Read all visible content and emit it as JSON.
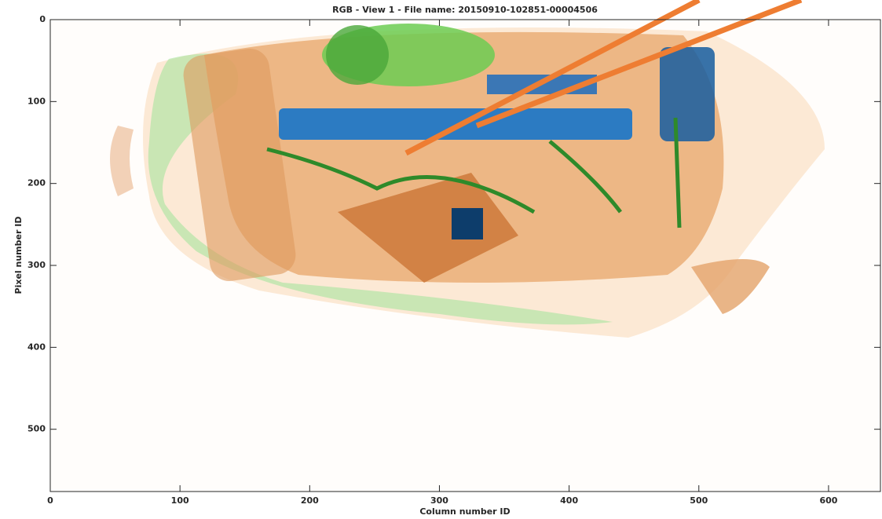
{
  "chart_data": {
    "type": "image",
    "title": "RGB - View 1 - File name: 20150910-102851-00004506",
    "xlabel": "Column number ID",
    "ylabel": "Pixel number ID",
    "xlim": [
      0,
      640
    ],
    "ylim": [
      0,
      576
    ],
    "y_reversed": true,
    "xticks": [
      0,
      100,
      200,
      300,
      400,
      500,
      600
    ],
    "yticks": [
      0,
      100,
      200,
      300,
      400,
      500
    ]
  }
}
